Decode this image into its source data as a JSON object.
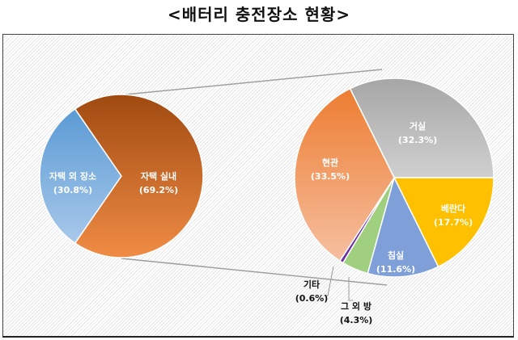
{
  "title": "<배터리 충전장소 현황>",
  "chart_data": [
    {
      "type": "pie",
      "slices": [
        {
          "label": "자택 외 장소",
          "value_label": "(30.8%)",
          "value": 30.8,
          "color": "#7fb0de"
        },
        {
          "label": "자택 실내",
          "value_label": "(69.2%)",
          "value": 69.2,
          "color": "#d0712a"
        }
      ]
    },
    {
      "type": "pie",
      "breakdown_of": "자택 실내",
      "slices": [
        {
          "label": "거실",
          "value_label": "(32.3%)",
          "value": 32.3,
          "color": "#bdbdbd"
        },
        {
          "label": "베란다",
          "value_label": "(17.7%)",
          "value": 17.7,
          "color": "#ffc733"
        },
        {
          "label": "침실",
          "value_label": "(11.6%)",
          "value": 11.6,
          "color": "#7f9fd9"
        },
        {
          "label": "그 외 방",
          "value_label": "(4.3%)",
          "value": 4.3,
          "color": "#9fcf7f"
        },
        {
          "label": "기타",
          "value_label": "(0.6%)",
          "value": 0.6,
          "color": "#7030a0"
        },
        {
          "label": "현관",
          "value_label": "(33.5%)",
          "value": 33.5,
          "color": "#f0a070"
        }
      ]
    }
  ]
}
